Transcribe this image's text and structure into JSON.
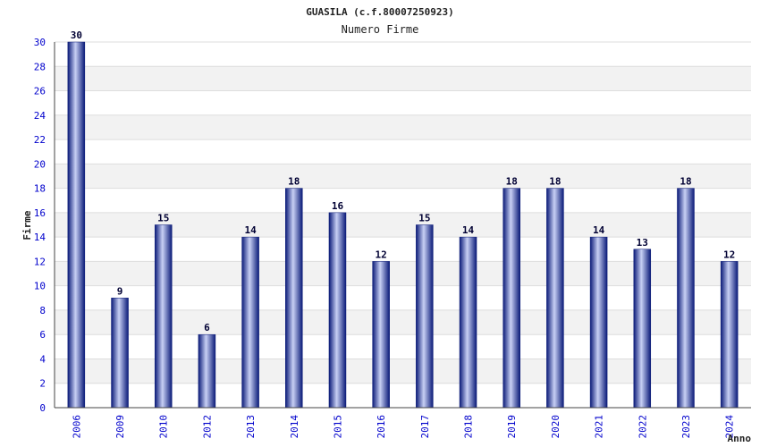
{
  "chart_data": {
    "type": "bar",
    "title": "GUASILA (c.f.80007250923)",
    "subtitle": "Numero Firme",
    "xlabel": "Anno",
    "ylabel": "Firme",
    "categories": [
      "2006",
      "2009",
      "2010",
      "2012",
      "2013",
      "2014",
      "2015",
      "2016",
      "2017",
      "2018",
      "2019",
      "2020",
      "2021",
      "2022",
      "2023",
      "2024"
    ],
    "values": [
      30,
      9,
      15,
      6,
      14,
      18,
      16,
      12,
      15,
      14,
      18,
      18,
      14,
      13,
      18,
      12
    ],
    "ylim": [
      0,
      30
    ],
    "yticks": [
      0,
      2,
      4,
      6,
      8,
      10,
      12,
      14,
      16,
      18,
      20,
      22,
      24,
      26,
      28,
      30
    ],
    "grid": true,
    "colors": {
      "bar_dark": "#0a1a78",
      "bar_light": "#c8d0f4",
      "band": "#f2f2f2",
      "gridline": "#dddddd",
      "tick_text": "#0000cc"
    }
  }
}
